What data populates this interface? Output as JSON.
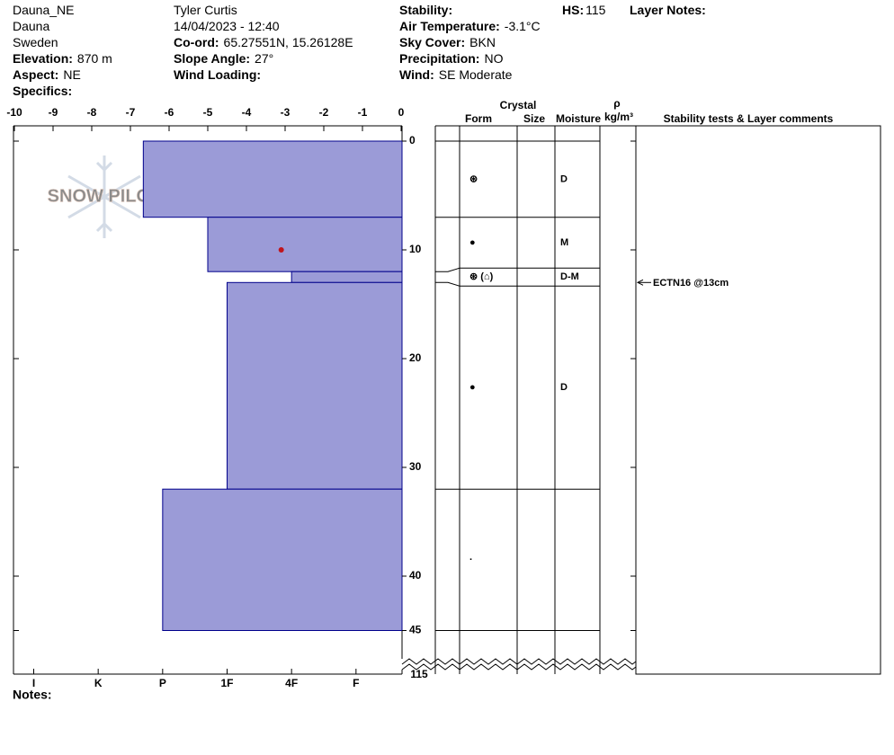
{
  "header": {
    "columns": [
      [
        {
          "value": "Dauna_NE"
        },
        {
          "value": "Dauna"
        },
        {
          "value": "Sweden"
        },
        {
          "label": "Elevation:",
          "value": "870 m"
        },
        {
          "label": "Aspect:",
          "value": "NE"
        },
        {
          "label": "Specifics:"
        }
      ],
      [
        {
          "value": "Tyler Curtis"
        },
        {
          "value": "14/04/2023 - 12:40"
        },
        {
          "label": "Co-ord:",
          "value": "65.27551N, 15.26128E"
        },
        {
          "label": "Slope Angle:",
          "value": "27°"
        },
        {
          "label": "Wind Loading:"
        }
      ],
      [
        {
          "label": "Stability:"
        },
        {
          "label": "Air Temperature:",
          "value": "-3.1°C"
        },
        {
          "label": "Sky Cover:",
          "value": "BKN"
        },
        {
          "label": "Precipitation:",
          "value": "NO"
        },
        {
          "label": "Wind:",
          "value": "SE Moderate"
        }
      ],
      [
        {
          "label": "HS:",
          "value": "115"
        }
      ],
      [
        {
          "label": "Layer Notes:"
        }
      ]
    ],
    "notes": "Notes:"
  },
  "watermark": "SNOW PILOT",
  "chart_data": {
    "type": "snow_profile",
    "xlim": [
      -10,
      0
    ],
    "xticks": [
      -10,
      -9,
      -8,
      -7,
      -6,
      -5,
      -4,
      -3,
      -2,
      -1,
      0
    ],
    "ylim": [
      0,
      45
    ],
    "yticks": [
      0,
      10,
      20,
      30,
      40,
      45
    ],
    "hardness_lim": [
      6.3,
      0.3
    ],
    "hardness_ticks": [
      {
        "value": 6,
        "label": "I"
      },
      {
        "value": 5,
        "label": "K"
      },
      {
        "value": 4,
        "label": "P"
      },
      {
        "value": 3,
        "label": "1F"
      },
      {
        "value": 2,
        "label": "4F"
      },
      {
        "value": 1,
        "label": "F"
      }
    ],
    "color": "#9b9bd7",
    "layers": [
      {
        "top": 0,
        "bottom": 7,
        "hardness": 4.3,
        "form": "⊛",
        "moisture": "D"
      },
      {
        "top": 7,
        "bottom": 12,
        "hardness": 3.3,
        "form": "●",
        "moisture": "M"
      },
      {
        "top": 12,
        "bottom": 13,
        "hardness": 2,
        "form": "⊛ (⌂)",
        "moisture": "D-M"
      },
      {
        "top": 13,
        "bottom": 32,
        "hardness": 3,
        "form": "●",
        "moisture": "D"
      },
      {
        "top": 32,
        "bottom": 45,
        "hardness": 4,
        "form": "·"
      }
    ],
    "temperatures": [
      {
        "depth": 10,
        "value": -3.1
      }
    ],
    "temperature_color": "#c0141c",
    "table_headers": {
      "crystal": "Crystal",
      "form": "Form",
      "size": "Size",
      "moisture": "Moisture",
      "rho": "ρ",
      "density": "kg/m³",
      "comments": "Stability tests & Layer comments"
    },
    "stability_tests": [
      {
        "depth": 13,
        "label": "ECTN16 @13cm"
      }
    ]
  }
}
